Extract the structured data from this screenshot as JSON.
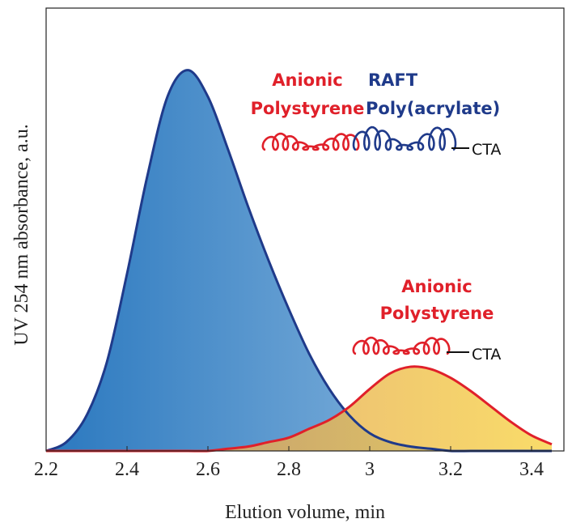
{
  "chart_data": {
    "type": "area",
    "x_label": "Elution volume, min",
    "y_label": "UV 254 nm absorbance, a.u.",
    "x": [
      2.2,
      2.25,
      2.3,
      2.35,
      2.4,
      2.45,
      2.5,
      2.55,
      2.6,
      2.65,
      2.7,
      2.75,
      2.8,
      2.85,
      2.9,
      2.95,
      3.0,
      3.05,
      3.1,
      3.15,
      3.2,
      3.25,
      3.3,
      3.35,
      3.4,
      3.45
    ],
    "series": [
      {
        "name": "RAFT Poly(acrylate)",
        "color": "#1f3a8a",
        "fill": "#3f8ccc",
        "values": [
          0,
          0.02,
          0.08,
          0.2,
          0.4,
          0.62,
          0.8,
          0.86,
          0.8,
          0.68,
          0.55,
          0.43,
          0.32,
          0.22,
          0.14,
          0.08,
          0.04,
          0.02,
          0.01,
          0.005,
          0,
          0,
          0,
          0,
          0,
          0
        ]
      },
      {
        "name": "Anionic Polystyrene",
        "color": "#e0202a",
        "fill": "#f0b050",
        "values": [
          0,
          0,
          0,
          0,
          0,
          0,
          0,
          0,
          0,
          0.005,
          0.01,
          0.02,
          0.03,
          0.05,
          0.07,
          0.1,
          0.14,
          0.175,
          0.19,
          0.185,
          0.165,
          0.135,
          0.1,
          0.065,
          0.035,
          0.015
        ]
      }
    ],
    "xlim": [
      2.2,
      3.48
    ],
    "ylim": [
      0,
      1
    ],
    "xticks": [
      2.2,
      2.4,
      2.6,
      2.8,
      3,
      3.2,
      3.4
    ],
    "annotations": [
      {
        "text": "Anionic",
        "color": "#e0202a"
      },
      {
        "text": "Polystyrene",
        "color": "#e0202a"
      },
      {
        "text": "RAFT",
        "color": "#1f3a8a"
      },
      {
        "text": "Poly(acrylate)",
        "color": "#1f3a8a"
      },
      {
        "text": "CTA",
        "color": "#111111"
      },
      {
        "text": "Anionic",
        "color": "#e0202a"
      },
      {
        "text": "Polystyrene",
        "color": "#e0202a"
      },
      {
        "text": "CTA",
        "color": "#111111"
      }
    ]
  }
}
